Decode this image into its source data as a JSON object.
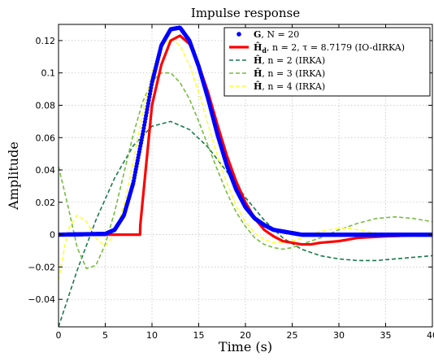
{
  "chart_data": {
    "type": "line",
    "title": "Impulse response",
    "xlabel": "Time (s)",
    "ylabel": "Amplitude",
    "xlim": [
      0,
      40
    ],
    "ylim": [
      -0.057,
      0.13
    ],
    "xticks": [
      0,
      5,
      10,
      15,
      20,
      25,
      30,
      35,
      40
    ],
    "xtick_labels": [
      "0",
      "5",
      "10",
      "15",
      "20",
      "25",
      "30",
      "35",
      "40"
    ],
    "yticks": [
      -0.04,
      -0.02,
      0,
      0.02,
      0.04,
      0.06,
      0.08,
      0.1,
      0.12
    ],
    "ytick_labels": [
      "−0.04",
      "−0.02",
      "0",
      "0.02",
      "0.04",
      "0.06",
      "0.08",
      "0.1",
      "0.12"
    ],
    "grid": true,
    "legend_position": "top-right",
    "series": [
      {
        "name": "G, N = 20",
        "legend_bold": "G",
        "legend_rest": ", N = 20",
        "color": "#0000ff",
        "style": "dots",
        "x": [
          0,
          5,
          6,
          7,
          8,
          9,
          10,
          11,
          12,
          13,
          14,
          15,
          16,
          17,
          18,
          19,
          20,
          21,
          22,
          23,
          24,
          25,
          26,
          27,
          28,
          29,
          30,
          35,
          40
        ],
        "y": [
          0,
          0.0005,
          0.003,
          0.012,
          0.032,
          0.062,
          0.094,
          0.117,
          0.127,
          0.128,
          0.12,
          0.104,
          0.084,
          0.062,
          0.043,
          0.028,
          0.017,
          0.01,
          0.006,
          0.003,
          0.002,
          0.001,
          0,
          0,
          0,
          0,
          0,
          0,
          0
        ]
      },
      {
        "name": "H_d, n = 2, τ = 8.7179 (IO-dIRKA)",
        "legend_bold": "Ĥ",
        "legend_sub": "d",
        "legend_rest": ", n = 2, τ = 8.7179 (IO-dIRKA)",
        "color": "#ff0000",
        "style": "thick",
        "x": [
          0,
          8.72,
          8.75,
          10,
          11,
          12,
          13,
          14,
          15,
          16,
          17,
          18,
          19,
          20,
          21,
          22,
          23,
          24,
          25,
          26,
          27,
          28,
          30,
          32,
          35,
          40
        ],
        "y": [
          0,
          0,
          0.006,
          0.08,
          0.105,
          0.12,
          0.123,
          0.118,
          0.105,
          0.088,
          0.068,
          0.049,
          0.033,
          0.02,
          0.01,
          0.003,
          -0.001,
          -0.004,
          -0.005,
          -0.006,
          -0.006,
          -0.005,
          -0.004,
          -0.002,
          -0.001,
          0
        ]
      },
      {
        "name": "H, n = 2 (IRKA)",
        "legend_bold": "Ĥ",
        "legend_rest": ", n = 2 (IRKA)",
        "color": "#1a7a4a",
        "style": "dashed",
        "x": [
          0,
          2,
          4,
          6,
          8,
          10,
          12,
          14,
          16,
          18,
          20,
          22,
          24,
          26,
          28,
          30,
          32,
          34,
          36,
          38,
          40
        ],
        "y": [
          -0.057,
          -0.022,
          0.009,
          0.035,
          0.055,
          0.067,
          0.07,
          0.065,
          0.054,
          0.039,
          0.023,
          0.009,
          -0.002,
          -0.009,
          -0.013,
          -0.015,
          -0.016,
          -0.016,
          -0.015,
          -0.014,
          -0.013
        ]
      },
      {
        "name": "H, n = 3 (IRKA)",
        "legend_bold": "Ĥ",
        "legend_rest": ", n = 3 (IRKA)",
        "color": "#77bb41",
        "style": "dashed",
        "x": [
          0,
          1,
          2,
          3,
          4,
          5,
          6,
          7,
          8,
          9,
          10,
          11,
          12,
          13,
          14,
          15,
          16,
          17,
          18,
          19,
          20,
          21,
          22,
          23,
          24,
          25,
          26,
          27,
          28,
          30,
          32,
          34,
          36,
          38,
          40
        ],
        "y": [
          0.042,
          0.018,
          -0.008,
          -0.021,
          -0.019,
          -0.006,
          0.014,
          0.038,
          0.062,
          0.082,
          0.095,
          0.1,
          0.1,
          0.094,
          0.084,
          0.07,
          0.055,
          0.04,
          0.026,
          0.014,
          0.005,
          -0.002,
          -0.006,
          -0.008,
          -0.009,
          -0.008,
          -0.006,
          -0.004,
          -0.002,
          0.003,
          0.007,
          0.01,
          0.011,
          0.01,
          0.008
        ]
      },
      {
        "name": "H, n = 4 (IRKA)",
        "legend_bold": "Ĥ",
        "legend_rest": ", n = 4 (IRKA)",
        "color": "#ffff33",
        "style": "dashed",
        "x": [
          0,
          1,
          2,
          3,
          4,
          5,
          6,
          7,
          8,
          9,
          10,
          11,
          12,
          13,
          14,
          15,
          16,
          17,
          18,
          19,
          20,
          21,
          22,
          23,
          24,
          25,
          26,
          27,
          28,
          29,
          30,
          31,
          32,
          33,
          34,
          35,
          36,
          37,
          38,
          39,
          40
        ],
        "y": [
          -0.028,
          0.003,
          0.012,
          0.008,
          -0.002,
          -0.007,
          0.0,
          0.018,
          0.045,
          0.075,
          0.1,
          0.116,
          0.121,
          0.117,
          0.105,
          0.088,
          0.068,
          0.049,
          0.032,
          0.018,
          0.008,
          0.001,
          -0.003,
          -0.005,
          -0.005,
          -0.004,
          -0.002,
          0.0,
          0.002,
          0.003,
          0.004,
          0.004,
          0.003,
          0.002,
          0.001,
          0.0,
          -0.001,
          -0.001,
          -0.001,
          0.0,
          0.001
        ]
      }
    ]
  }
}
